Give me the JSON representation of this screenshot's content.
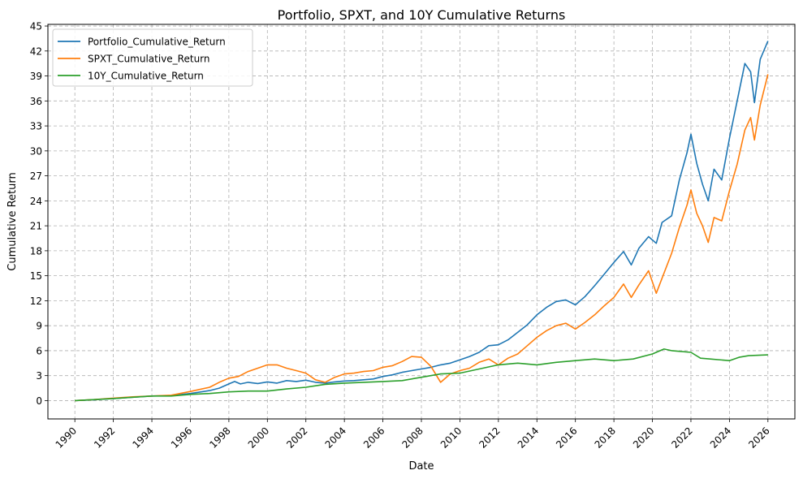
{
  "chart_data": {
    "type": "line",
    "title": "Portfolio, SPXT, and 10Y Cumulative Returns",
    "xlabel": "Date",
    "ylabel": "Cumulative Return",
    "xlim": [
      1988.6,
      2027.4
    ],
    "ylim": [
      -2.2,
      45.2
    ],
    "x_ticks": [
      "1990",
      "1992",
      "1994",
      "1996",
      "1998",
      "2000",
      "2002",
      "2004",
      "2006",
      "2008",
      "2010",
      "2012",
      "2014",
      "2016",
      "2018",
      "2020",
      "2022",
      "2024",
      "2026"
    ],
    "y_ticks": [
      "0",
      "3",
      "6",
      "9",
      "12",
      "15",
      "18",
      "21",
      "24",
      "27",
      "30",
      "33",
      "36",
      "39",
      "42",
      "45"
    ],
    "grid": true,
    "legend_position": "top-left",
    "series": [
      {
        "name": "Portfolio_Cumulative_Return",
        "color": "#1f77b4",
        "points": [
          [
            1990.0,
            0.0
          ],
          [
            1991.0,
            0.1
          ],
          [
            1992.0,
            0.25
          ],
          [
            1993.0,
            0.4
          ],
          [
            1994.0,
            0.55
          ],
          [
            1995.0,
            0.6
          ],
          [
            1996.0,
            0.85
          ],
          [
            1997.0,
            1.2
          ],
          [
            1997.5,
            1.5
          ],
          [
            1998.0,
            2.0
          ],
          [
            1998.3,
            2.3
          ],
          [
            1998.6,
            2.0
          ],
          [
            1999.0,
            2.2
          ],
          [
            1999.5,
            2.05
          ],
          [
            2000.0,
            2.25
          ],
          [
            2000.5,
            2.1
          ],
          [
            2001.0,
            2.4
          ],
          [
            2001.5,
            2.3
          ],
          [
            2002.0,
            2.45
          ],
          [
            2002.5,
            2.2
          ],
          [
            2003.0,
            2.1
          ],
          [
            2003.5,
            2.25
          ],
          [
            2004.0,
            2.35
          ],
          [
            2004.5,
            2.4
          ],
          [
            2005.0,
            2.5
          ],
          [
            2005.5,
            2.6
          ],
          [
            2006.0,
            2.9
          ],
          [
            2006.5,
            3.1
          ],
          [
            2007.0,
            3.4
          ],
          [
            2007.5,
            3.6
          ],
          [
            2008.0,
            3.8
          ],
          [
            2008.5,
            4.0
          ],
          [
            2009.0,
            4.3
          ],
          [
            2009.5,
            4.5
          ],
          [
            2010.0,
            4.9
          ],
          [
            2010.5,
            5.3
          ],
          [
            2011.0,
            5.8
          ],
          [
            2011.5,
            6.6
          ],
          [
            2012.0,
            6.7
          ],
          [
            2012.5,
            7.3
          ],
          [
            2013.0,
            8.2
          ],
          [
            2013.5,
            9.1
          ],
          [
            2014.0,
            10.3
          ],
          [
            2014.5,
            11.2
          ],
          [
            2015.0,
            11.9
          ],
          [
            2015.5,
            12.1
          ],
          [
            2016.0,
            11.5
          ],
          [
            2016.5,
            12.5
          ],
          [
            2017.0,
            13.8
          ],
          [
            2017.5,
            15.2
          ],
          [
            2018.0,
            16.6
          ],
          [
            2018.5,
            17.9
          ],
          [
            2018.9,
            16.3
          ],
          [
            2019.3,
            18.3
          ],
          [
            2019.8,
            19.7
          ],
          [
            2020.2,
            18.9
          ],
          [
            2020.5,
            21.4
          ],
          [
            2021.0,
            22.2
          ],
          [
            2021.4,
            26.5
          ],
          [
            2021.8,
            29.8
          ],
          [
            2022.0,
            32.0
          ],
          [
            2022.3,
            28.5
          ],
          [
            2022.6,
            26.0
          ],
          [
            2022.9,
            24.0
          ],
          [
            2023.2,
            27.8
          ],
          [
            2023.6,
            26.5
          ],
          [
            2024.0,
            31.5
          ],
          [
            2024.4,
            36.0
          ],
          [
            2024.8,
            40.5
          ],
          [
            2025.1,
            39.5
          ],
          [
            2025.3,
            35.8
          ],
          [
            2025.6,
            41.0
          ],
          [
            2026.0,
            43.2
          ]
        ]
      },
      {
        "name": "SPXT_Cumulative_Return",
        "color": "#ff7f0e",
        "points": [
          [
            1990.0,
            0.0
          ],
          [
            1991.0,
            0.12
          ],
          [
            1992.0,
            0.3
          ],
          [
            1993.0,
            0.45
          ],
          [
            1994.0,
            0.55
          ],
          [
            1995.0,
            0.65
          ],
          [
            1996.0,
            1.1
          ],
          [
            1997.0,
            1.6
          ],
          [
            1997.5,
            2.2
          ],
          [
            1998.0,
            2.7
          ],
          [
            1998.5,
            2.9
          ],
          [
            1999.0,
            3.5
          ],
          [
            1999.5,
            3.9
          ],
          [
            2000.0,
            4.3
          ],
          [
            2000.5,
            4.3
          ],
          [
            2001.0,
            3.9
          ],
          [
            2001.5,
            3.6
          ],
          [
            2002.0,
            3.3
          ],
          [
            2002.5,
            2.5
          ],
          [
            2003.0,
            2.2
          ],
          [
            2003.5,
            2.8
          ],
          [
            2004.0,
            3.2
          ],
          [
            2004.5,
            3.3
          ],
          [
            2005.0,
            3.5
          ],
          [
            2005.5,
            3.6
          ],
          [
            2006.0,
            4.0
          ],
          [
            2006.5,
            4.2
          ],
          [
            2007.0,
            4.7
          ],
          [
            2007.5,
            5.3
          ],
          [
            2008.0,
            5.2
          ],
          [
            2008.5,
            4.1
          ],
          [
            2009.0,
            2.2
          ],
          [
            2009.5,
            3.2
          ],
          [
            2010.0,
            3.6
          ],
          [
            2010.5,
            3.9
          ],
          [
            2011.0,
            4.6
          ],
          [
            2011.5,
            5.0
          ],
          [
            2012.0,
            4.3
          ],
          [
            2012.5,
            5.1
          ],
          [
            2013.0,
            5.6
          ],
          [
            2013.5,
            6.6
          ],
          [
            2014.0,
            7.6
          ],
          [
            2014.5,
            8.4
          ],
          [
            2015.0,
            9.0
          ],
          [
            2015.5,
            9.3
          ],
          [
            2016.0,
            8.6
          ],
          [
            2016.5,
            9.4
          ],
          [
            2017.0,
            10.3
          ],
          [
            2017.5,
            11.4
          ],
          [
            2018.0,
            12.4
          ],
          [
            2018.5,
            14.0
          ],
          [
            2018.9,
            12.4
          ],
          [
            2019.3,
            13.9
          ],
          [
            2019.8,
            15.6
          ],
          [
            2020.2,
            12.9
          ],
          [
            2020.5,
            14.7
          ],
          [
            2021.0,
            17.7
          ],
          [
            2021.4,
            20.8
          ],
          [
            2021.8,
            23.5
          ],
          [
            2022.0,
            25.3
          ],
          [
            2022.3,
            22.5
          ],
          [
            2022.6,
            21.0
          ],
          [
            2022.9,
            19.0
          ],
          [
            2023.2,
            22.0
          ],
          [
            2023.6,
            21.6
          ],
          [
            2024.0,
            25.2
          ],
          [
            2024.4,
            28.4
          ],
          [
            2024.8,
            32.5
          ],
          [
            2025.1,
            34.0
          ],
          [
            2025.3,
            31.3
          ],
          [
            2025.6,
            35.5
          ],
          [
            2026.0,
            39.2
          ]
        ]
      },
      {
        "name": "10Y_Cumulative_Return",
        "color": "#2ca02c",
        "points": [
          [
            1990.0,
            0.0
          ],
          [
            1991.0,
            0.12
          ],
          [
            1992.0,
            0.25
          ],
          [
            1993.0,
            0.4
          ],
          [
            1994.0,
            0.55
          ],
          [
            1995.0,
            0.55
          ],
          [
            1996.0,
            0.75
          ],
          [
            1997.0,
            0.85
          ],
          [
            1998.0,
            1.05
          ],
          [
            1999.0,
            1.15
          ],
          [
            2000.0,
            1.15
          ],
          [
            2001.0,
            1.4
          ],
          [
            2002.0,
            1.6
          ],
          [
            2003.0,
            1.95
          ],
          [
            2004.0,
            2.1
          ],
          [
            2005.0,
            2.2
          ],
          [
            2006.0,
            2.3
          ],
          [
            2007.0,
            2.4
          ],
          [
            2008.0,
            2.8
          ],
          [
            2009.0,
            3.2
          ],
          [
            2010.0,
            3.3
          ],
          [
            2011.0,
            3.8
          ],
          [
            2012.0,
            4.3
          ],
          [
            2013.0,
            4.5
          ],
          [
            2014.0,
            4.3
          ],
          [
            2015.0,
            4.6
          ],
          [
            2016.0,
            4.8
          ],
          [
            2017.0,
            5.0
          ],
          [
            2018.0,
            4.8
          ],
          [
            2019.0,
            5.0
          ],
          [
            2020.0,
            5.6
          ],
          [
            2020.6,
            6.2
          ],
          [
            2021.0,
            6.0
          ],
          [
            2022.0,
            5.8
          ],
          [
            2022.5,
            5.1
          ],
          [
            2023.0,
            5.0
          ],
          [
            2024.0,
            4.8
          ],
          [
            2024.5,
            5.2
          ],
          [
            2025.0,
            5.4
          ],
          [
            2026.0,
            5.5
          ]
        ]
      }
    ]
  }
}
